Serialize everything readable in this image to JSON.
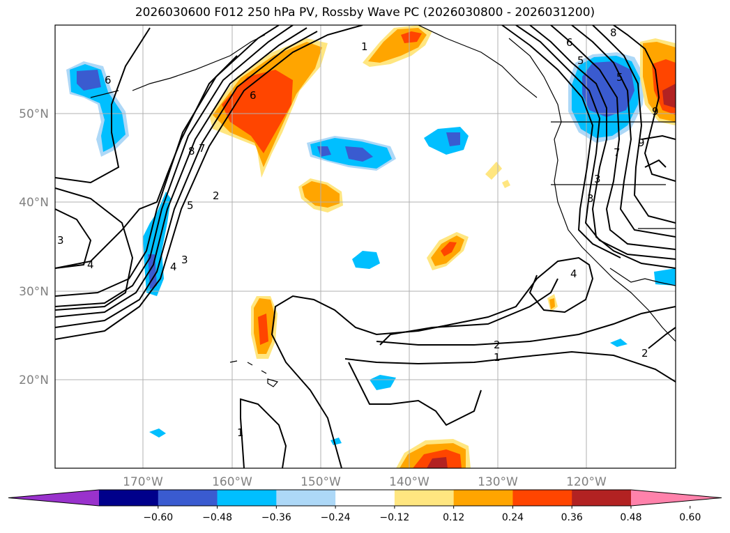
{
  "title": "2026030600 F012 250 hPa PV, Rossby Wave PC (2026030800 - 2026031200)",
  "map": {
    "lat_labels": [
      "50°N",
      "40°N",
      "30°N",
      "20°N"
    ],
    "lon_labels": [
      "170°W",
      "160°W",
      "150°W",
      "140°W",
      "130°W",
      "120°W"
    ],
    "contour_labels": [
      "6",
      "8",
      "7",
      "6",
      "5",
      "4",
      "3",
      "2",
      "1",
      "4",
      "3",
      "5",
      "2",
      "1",
      "3",
      "4",
      "6",
      "9",
      "8",
      "7",
      "5",
      "3",
      "9",
      "2",
      "1"
    ],
    "colorbar": {
      "ticks": [
        "−0.60",
        "−0.48",
        "−0.36",
        "−0.24",
        "−0.12",
        "0.12",
        "0.24",
        "0.36",
        "0.48",
        "0.60"
      ],
      "colors": [
        "#9932cc",
        "#00008b",
        "#3a5bd0",
        "#00bfff",
        "#add8f7",
        "#ffffff",
        "#ffe680",
        "#ffa500",
        "#ff4500",
        "#b22222",
        "#ff82ab"
      ]
    }
  }
}
